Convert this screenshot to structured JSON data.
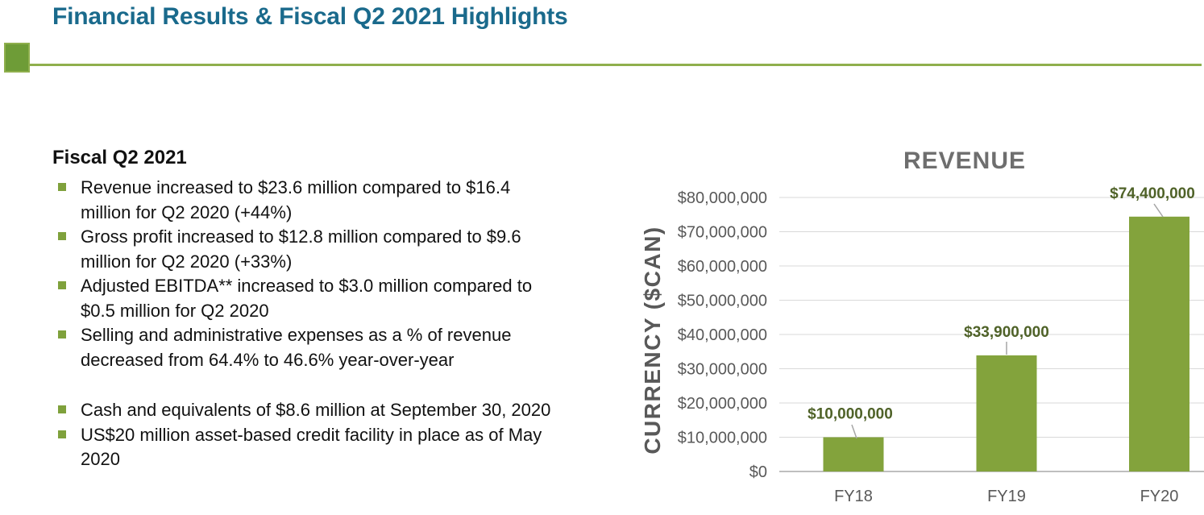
{
  "title": "Financial Results & Fiscal Q2 2021 Highlights",
  "section": {
    "heading": "Fiscal Q2 2021",
    "bullet_groups": [
      {
        "items": [
          {
            "lines": [
              "Revenue increased to $23.6 million compared to $16.4",
              "million for Q2 2020 (+44%)"
            ]
          },
          {
            "lines": [
              "Gross profit increased to $12.8 million compared to $9.6",
              "million for Q2 2020 (+33%)"
            ]
          },
          {
            "lines": [
              "Adjusted EBITDA** increased to $3.0 million compared to",
              "$0.5 million for Q2 2020"
            ]
          },
          {
            "lines": [
              "Selling and administrative expenses as a % of revenue",
              "decreased from 64.4% to 46.6% year-over-year"
            ]
          }
        ]
      },
      {
        "items": [
          {
            "lines": [
              "Cash and equivalents of $8.6 million at September 30, 2020"
            ]
          },
          {
            "lines": [
              "US$20 million asset-based credit facility in place as of May",
              "2020"
            ]
          }
        ]
      }
    ]
  },
  "chart_data": {
    "type": "bar",
    "title": "REVENUE",
    "xlabel": "",
    "ylabel": "CURRENCY ($CAN)",
    "categories": [
      "FY18",
      "FY19",
      "FY20"
    ],
    "values": [
      10000000,
      33900000,
      74400000
    ],
    "bar_labels": [
      "$10,000,000",
      "$33,900,000",
      "$74,400,000"
    ],
    "y_ticks": [
      0,
      10000000,
      20000000,
      30000000,
      40000000,
      50000000,
      60000000,
      70000000,
      80000000
    ],
    "y_tick_labels": [
      "$0",
      "$10,000,000",
      "$20,000,000",
      "$30,000,000",
      "$40,000,000",
      "$50,000,000",
      "$60,000,000",
      "$70,000,000",
      "$80,000,000"
    ],
    "ylim": [
      0,
      80000000
    ],
    "grid": "horizontal",
    "legend": "none"
  },
  "colors": {
    "title_teal": "#1A6A8C",
    "accent_green": "#6E9C37",
    "line_green": "#8FAF4D",
    "bullet_marker": "#7FA13C",
    "bar_green": "#83A33C",
    "bar_label_olive": "#4F6228",
    "axis_text": "#595959",
    "chart_title_gray": "#6E6E6E",
    "gridline": "#D9D9D9",
    "axis_line": "#BFBFBF",
    "leader_line": "#A6A6A6"
  }
}
